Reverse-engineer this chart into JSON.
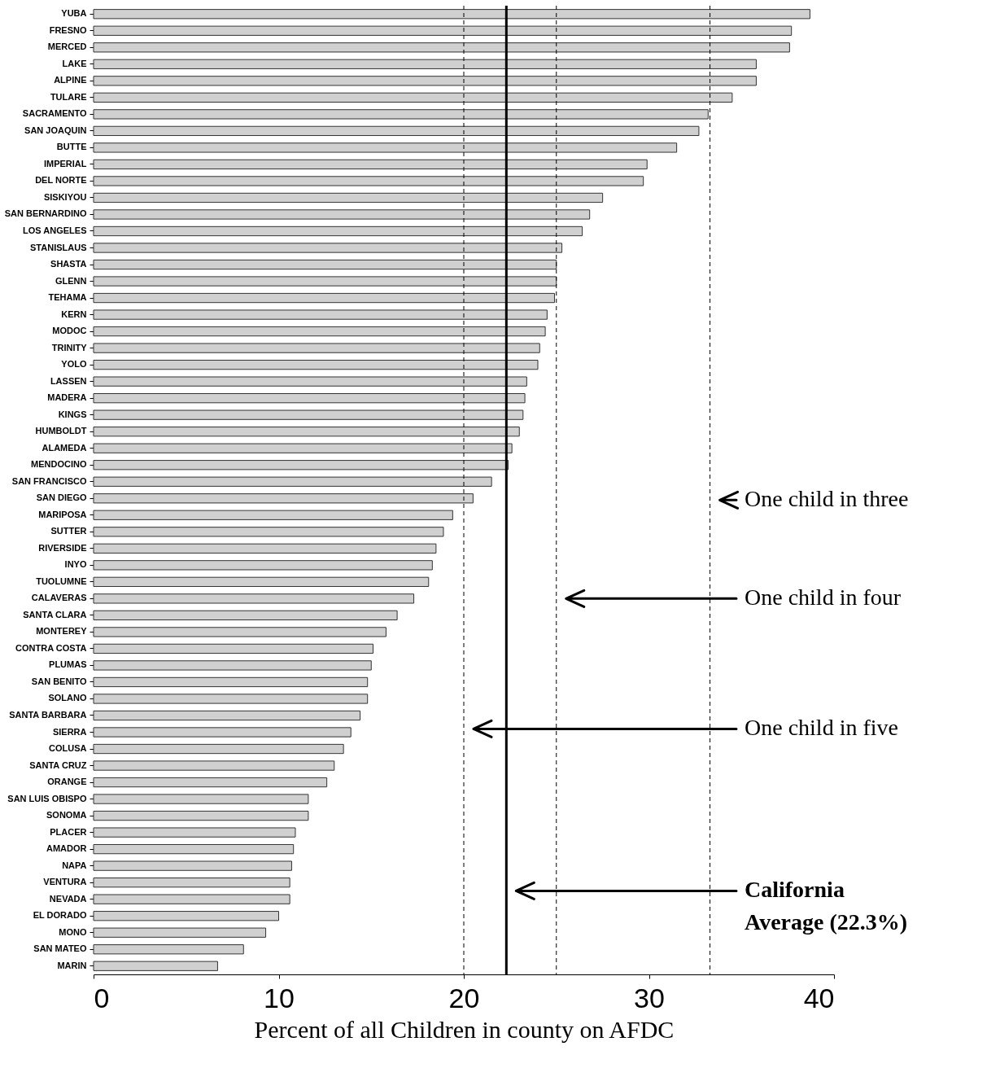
{
  "chart_data": {
    "type": "bar",
    "orientation": "horizontal",
    "xlabel": "Percent of  all Children in county on AFDC",
    "categories": [
      "YUBA",
      "FRESNO",
      "MERCED",
      "LAKE",
      "ALPINE",
      "TULARE",
      "SACRAMENTO",
      "SAN JOAQUIN",
      "BUTTE",
      "IMPERIAL",
      "DEL NORTE",
      "SISKIYOU",
      "SAN BERNARDINO",
      "LOS ANGELES",
      "STANISLAUS",
      "SHASTA",
      "GLENN",
      "TEHAMA",
      "KERN",
      "MODOC",
      "TRINITY",
      "YOLO",
      "LASSEN",
      "MADERA",
      "KINGS",
      "HUMBOLDT",
      "ALAMEDA",
      "MENDOCINO",
      "SAN FRANCISCO",
      "SAN DIEGO",
      "MARIPOSA",
      "SUTTER",
      "RIVERSIDE",
      "INYO",
      "TUOLUMNE",
      "CALAVERAS",
      "SANTA CLARA",
      "MONTEREY",
      "CONTRA COSTA",
      "PLUMAS",
      "SAN BENITO",
      "SOLANO",
      "SANTA BARBARA",
      "SIERRA",
      "COLUSA",
      "SANTA CRUZ",
      "ORANGE",
      "SAN LUIS OBISPO",
      "SONOMA",
      "PLACER",
      "AMADOR",
      "NAPA",
      "VENTURA",
      "NEVADA",
      "EL DORADO",
      "MONO",
      "SAN MATEO",
      "MARIN"
    ],
    "values": [
      38.7,
      37.7,
      37.6,
      35.8,
      35.8,
      34.5,
      33.2,
      32.7,
      31.5,
      29.9,
      29.7,
      27.5,
      26.8,
      26.4,
      25.3,
      25.0,
      25.0,
      24.9,
      24.5,
      24.4,
      24.1,
      24.0,
      23.4,
      23.3,
      23.2,
      23.0,
      22.6,
      22.4,
      21.5,
      20.5,
      19.4,
      18.9,
      18.5,
      18.3,
      18.1,
      17.3,
      16.4,
      15.8,
      15.1,
      15.0,
      14.8,
      14.8,
      14.4,
      13.9,
      13.5,
      13.0,
      12.6,
      11.6,
      11.6,
      10.9,
      10.8,
      10.7,
      10.6,
      10.6,
      10.0,
      9.3,
      8.1,
      6.7
    ],
    "color": "#d0d0d0",
    "xlim": [
      0,
      40
    ],
    "xticks": [
      0,
      10,
      20,
      30,
      40
    ],
    "grid": false,
    "ref_lines": [
      {
        "axis": "x",
        "value": 33.3,
        "line_style": "dashed",
        "color": "#000000"
      },
      {
        "axis": "x",
        "value": 25,
        "line_style": "dashed",
        "color": "#000000"
      },
      {
        "axis": "x",
        "value": 20,
        "line_style": "dashed",
        "color": "#000000"
      },
      {
        "axis": "x",
        "value": 22.3,
        "line_style": "solid",
        "color": "#000000"
      }
    ],
    "annotations": [
      "One child in three",
      "One child in four",
      "One child in five",
      "California Average (22.3%)"
    ]
  }
}
